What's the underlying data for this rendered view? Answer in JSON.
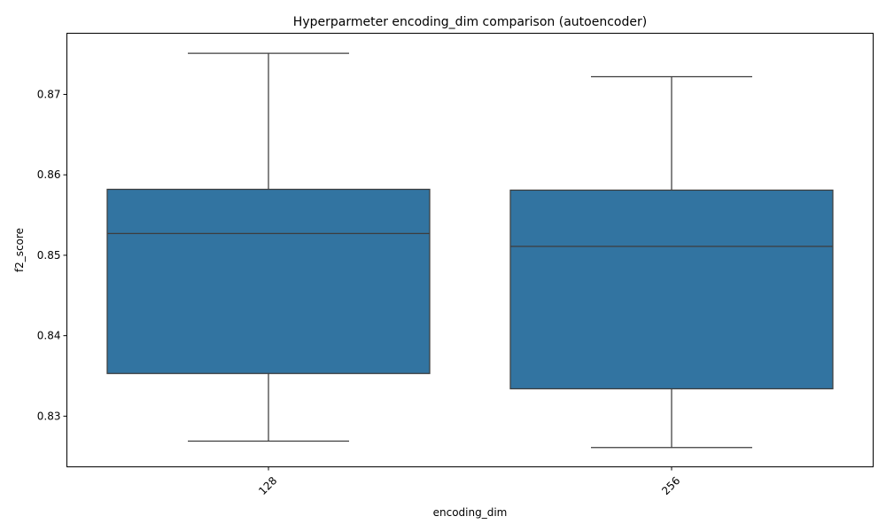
{
  "chart_data": {
    "type": "box",
    "title": "Hyperparmeter encoding_dim comparison (autoencoder)",
    "xlabel": "encoding_dim",
    "ylabel": "f2_score",
    "categories": [
      "128",
      "256"
    ],
    "boxes": [
      {
        "category": "128",
        "whisker_low": 0.8269,
        "q1": 0.8353,
        "median": 0.8527,
        "q3": 0.8582,
        "whisker_high": 0.8751
      },
      {
        "category": "256",
        "whisker_low": 0.8261,
        "q1": 0.8334,
        "median": 0.8511,
        "q3": 0.8581,
        "whisker_high": 0.8722
      }
    ],
    "ylim": [
      0.8237,
      0.8776
    ],
    "yticks": [
      0.83,
      0.84,
      0.85,
      0.86,
      0.87
    ],
    "ytick_labels": [
      "0.83",
      "0.84",
      "0.85",
      "0.86",
      "0.87"
    ],
    "xtick_rotation": 45,
    "grid": false,
    "legend": "none",
    "colors": {
      "box_fill": "#3274a1",
      "line": "#3d3d3d",
      "axis": "#000000"
    }
  }
}
